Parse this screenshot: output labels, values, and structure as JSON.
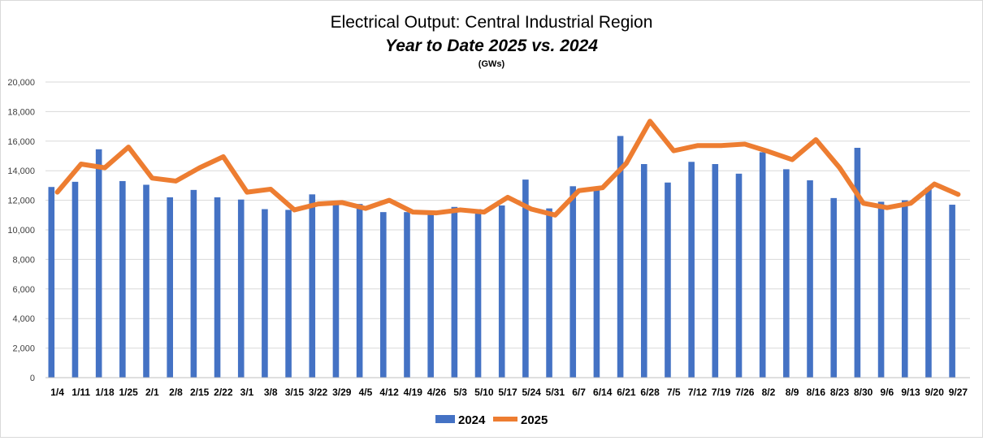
{
  "chart_data": {
    "type": "bar",
    "title": "Electrical Output:  Central Industrial Region",
    "subtitle": "Year to Date 2025 vs. 2024",
    "unit_label": "(GWs)",
    "categories": [
      "1/4",
      "1/11",
      "1/18",
      "1/25",
      "2/1",
      "2/8",
      "2/15",
      "2/22",
      "3/1",
      "3/8",
      "3/15",
      "3/22",
      "3/29",
      "4/5",
      "4/12",
      "4/19",
      "4/26",
      "5/3",
      "5/10",
      "5/17",
      "5/24",
      "5/31",
      "6/7",
      "6/14",
      "6/21",
      "6/28",
      "7/5",
      "7/12",
      "7/19",
      "7/26",
      "8/2",
      "8/9",
      "8/16",
      "8/23",
      "8/30",
      "9/6",
      "9/13",
      "9/20",
      "9/27"
    ],
    "ylim": [
      0,
      20000
    ],
    "yticks": [
      0,
      2000,
      4000,
      6000,
      8000,
      10000,
      12000,
      14000,
      16000,
      18000,
      20000
    ],
    "ytick_labels": [
      "0",
      "2,000",
      "4,000",
      "6,000",
      "8,000",
      "10,000",
      "12,000",
      "14,000",
      "16,000",
      "18,000",
      "20,000"
    ],
    "grid": true,
    "legend_position": "bottom",
    "series": [
      {
        "name": "2024",
        "kind": "bar",
        "color": "#4472C4",
        "values": [
          12900,
          13250,
          15450,
          13300,
          13050,
          12200,
          12700,
          12200,
          12050,
          11400,
          11350,
          12400,
          11800,
          11750,
          11200,
          11200,
          11200,
          11550,
          11400,
          11650,
          13400,
          11450,
          12950,
          12700,
          16350,
          14450,
          13200,
          14600,
          14450,
          13800,
          15250,
          14100,
          13350,
          12150,
          15550,
          11900,
          12000,
          12850,
          11700
        ]
      },
      {
        "name": "2025",
        "kind": "line",
        "color": "#ED7D31",
        "values": [
          12550,
          14450,
          14200,
          15600,
          13500,
          13300,
          14200,
          14950,
          12550,
          12750,
          11350,
          11750,
          11850,
          11450,
          12000,
          11200,
          11150,
          11350,
          11200,
          12200,
          11400,
          11000,
          12650,
          12850,
          14500,
          17350,
          15350,
          15700,
          15700,
          15800,
          15300,
          14750,
          16100,
          14200,
          11800,
          11500,
          11800,
          13100,
          12400
        ]
      }
    ]
  }
}
